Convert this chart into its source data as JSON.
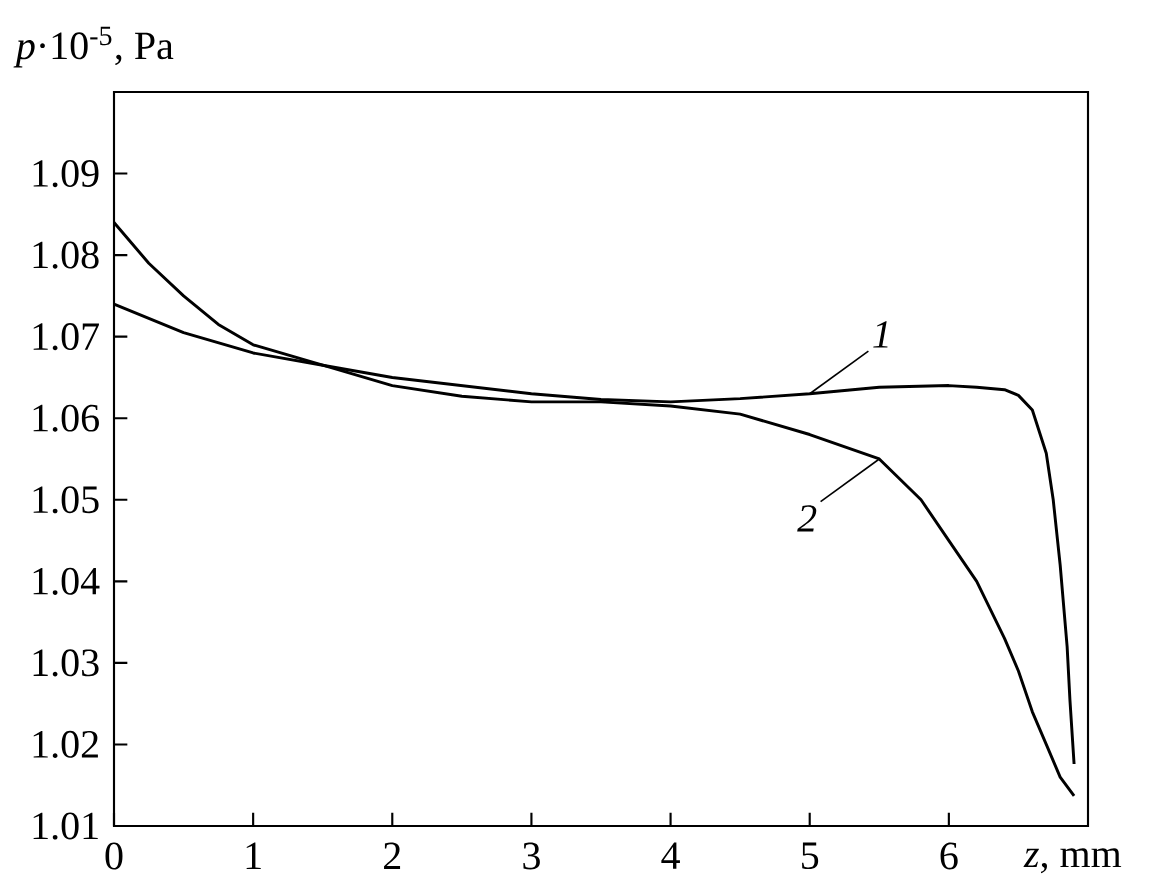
{
  "chart_data": {
    "type": "line",
    "xlabel": "*z*, mm",
    "ylabel": "*p*·10$^{-5}$, Pa",
    "xlim": [
      0,
      7
    ],
    "ylim": [
      1.01,
      1.1
    ],
    "xticks": [
      0,
      1,
      2,
      3,
      4,
      5,
      6
    ],
    "yticks": [
      1.01,
      1.02,
      1.03,
      1.04,
      1.05,
      1.06,
      1.07,
      1.08,
      1.09
    ],
    "grid": false,
    "marker": "none",
    "line_style": "solid",
    "series": [
      {
        "name": "1",
        "color": "#000000",
        "x": [
          0,
          0.5,
          1,
          1.5,
          2,
          2.5,
          3,
          3.5,
          4,
          4.5,
          5,
          5.5,
          6,
          6.2,
          6.4,
          6.5,
          6.6,
          6.7,
          6.75,
          6.8,
          6.85,
          6.87,
          6.9
        ],
        "values": [
          1.074,
          1.0705,
          1.068,
          1.0665,
          1.065,
          1.064,
          1.063,
          1.0623,
          1.062,
          1.0624,
          1.063,
          1.0638,
          1.064,
          1.0638,
          1.0635,
          1.0628,
          1.061,
          1.0557,
          1.05,
          1.042,
          1.032,
          1.0255,
          1.0176
        ]
      },
      {
        "name": "2",
        "color": "#000000",
        "x": [
          0,
          0.25,
          0.5,
          0.75,
          1,
          1.5,
          2,
          2.5,
          3,
          3.5,
          4,
          4.5,
          5,
          5.5,
          5.8,
          6,
          6.2,
          6.4,
          6.5,
          6.6,
          6.7,
          6.8,
          6.9
        ],
        "values": [
          1.084,
          1.079,
          1.075,
          1.0715,
          1.069,
          1.0665,
          1.064,
          1.0627,
          1.062,
          1.062,
          1.0615,
          1.0605,
          1.058,
          1.055,
          1.05,
          1.045,
          1.04,
          1.033,
          1.029,
          1.024,
          1.02,
          1.016,
          1.0137
        ]
      }
    ]
  }
}
